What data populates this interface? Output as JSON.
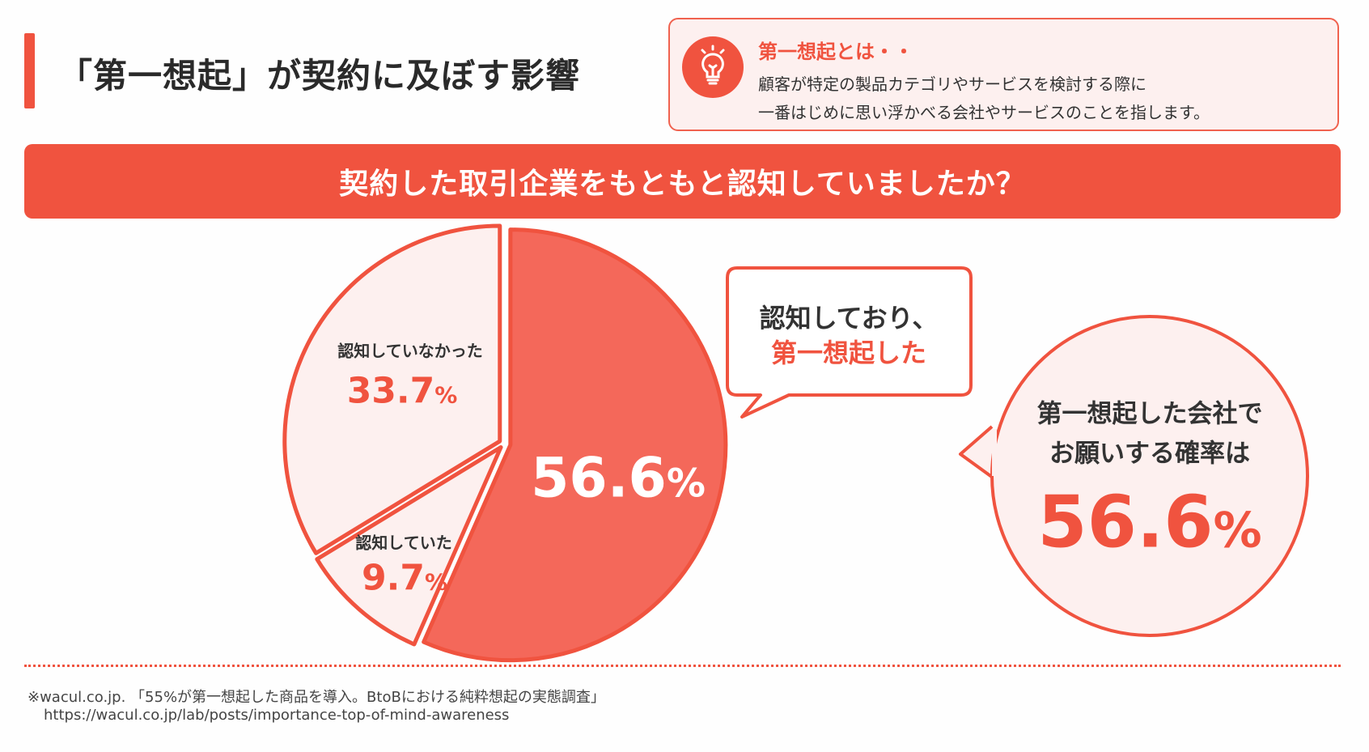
{
  "header": {
    "title": "「第一想起」が契約に及ぼす影響"
  },
  "definition": {
    "icon": "lightbulb-icon",
    "heading": "第一想起とは・・",
    "lines": [
      "顧客が特定の製品カテゴリやサービスを検討する際に",
      "一番はじめに思い浮かべる会社やサービスのことを指します。"
    ]
  },
  "banner": {
    "question": "契約した取引企業をもともと認知していましたか？"
  },
  "colors": {
    "accent": "#f0533f",
    "light_fill": "#fdf0ef",
    "big_slice": "#f4685a"
  },
  "chart_data": {
    "type": "pie",
    "start": "top",
    "direction": "clockwise",
    "slices": [
      {
        "label": "認知しており、第一想起した",
        "value": 56.6,
        "display": "56.6"
      },
      {
        "label": "認知していた",
        "value": 9.7,
        "display": "9.7"
      },
      {
        "label": "認知していなかった",
        "value": 33.7,
        "display": "33.7"
      }
    ],
    "unit": "%"
  },
  "callout": {
    "line1": "認知しており、",
    "line2": "第一想起した"
  },
  "highlight": {
    "line1": "第一想起した会社で",
    "line2": "お願いする確率は",
    "value": "56.6",
    "unit": "%"
  },
  "footer": {
    "source": "※wacul.co.jp. 「55%が第一想起した商品を導入。BtoBにおける純粋想起の実態調査」",
    "url": "https://wacul.co.jp/lab/posts/importance-top-of-mind-awareness"
  }
}
